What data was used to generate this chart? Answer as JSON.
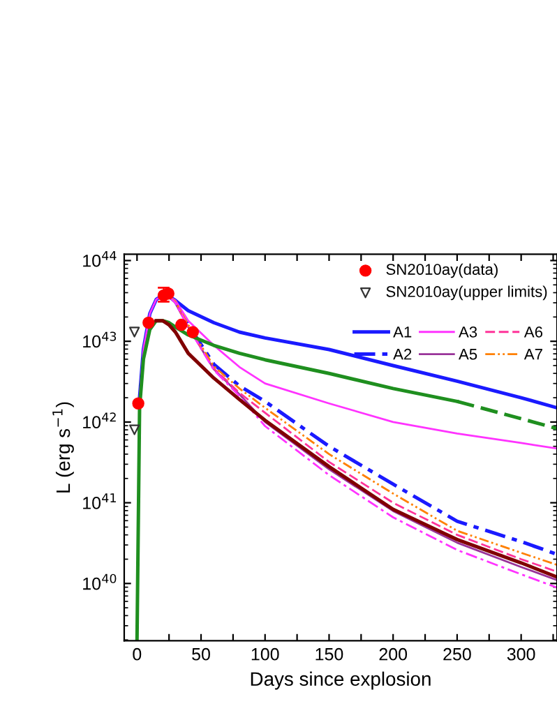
{
  "chart_data": {
    "type": "line",
    "xlabel": "Days since explosion",
    "ylabel": "L (erg s$^{−1}$)",
    "log": "y",
    "xlim": [
      -10,
      328
    ],
    "xticks": [
      0,
      {
        "value": 25,
        "label": null
      },
      50,
      {
        "value": 75,
        "label": null
      },
      100,
      {
        "value": 125,
        "label": null
      },
      150,
      {
        "value": 175,
        "label": null
      },
      200,
      {
        "value": 225,
        "label": null
      },
      250,
      {
        "value": 275,
        "label": null
      },
      300,
      {
        "value": 325,
        "label": null
      }
    ],
    "ylim": [
      1.95e+39,
      1.2e+44
    ],
    "yticks": [
      {
        "value": 1e+40,
        "label": "10$^{40}$"
      },
      {
        "value": 1e+41,
        "label": "10$^{41}$"
      },
      {
        "value": 1e+42,
        "label": "10$^{42}$"
      },
      {
        "value": 1e+43,
        "label": "10$^{43}$"
      },
      {
        "value": 1e+44,
        "label": "10$^{44}$"
      }
    ],
    "x": [
      2,
      5,
      10,
      15,
      20,
      25,
      30,
      40,
      60,
      80,
      100,
      150,
      200,
      250,
      300,
      328
    ],
    "legend": "top right",
    "grid": false,
    "series": [
      {
        "name": "SN2010ay(data)",
        "type": "scatter",
        "marker": "circle",
        "color": "#ff0000",
        "x": [
          1,
          9,
          20.8,
          24.5,
          34.6,
          43.6
        ],
        "values": [
          1.7e+42,
          1.7e+43,
          3.7e+43,
          3.9e+43,
          1.6e+43,
          1.3e+43
        ],
        "errors": [
          null,
          null,
          [
            3.1e+43,
            4.6e+43
          ],
          null,
          null,
          null
        ]
      },
      {
        "name": "SN2010ay(upper limits)",
        "type": "scatter",
        "marker": "triangle",
        "color": "#333333",
        "x": [
          -2,
          -2
        ],
        "values": [
          1.3e+43,
          8e+41
        ]
      },
      {
        "name": "A1",
        "color": "#1a1aff",
        "line_style": "solid",
        "values": [
          2e+42,
          8e+42,
          2.2e+43,
          3.3e+43,
          3.7e+43,
          3.6e+43,
          3.2e+43,
          2.4e+43,
          1.7e+43,
          1.3e+43,
          1.1e+43,
          7.9e+42,
          5e+42,
          3.2e+42,
          2e+42,
          1.5e+42
        ]
      },
      {
        "name": "A2",
        "color": "#1a1aff",
        "line_style": "dashdot",
        "values": [
          null,
          null,
          null,
          null,
          null,
          3.6e+43,
          3.1e+43,
          1.6e+43,
          5.2e+42,
          2.8e+42,
          1.8e+42,
          5e+41,
          1.7e+41,
          5.9e+40,
          3.3e+40,
          2.3e+40
        ]
      },
      {
        "name": "A3",
        "color": "#ff33ff",
        "line_style": "solid",
        "values": [
          2e+42,
          8e+42,
          2.2e+43,
          3.3e+43,
          3.7e+43,
          3.6e+43,
          3.2e+43,
          1.8e+43,
          8.9e+42,
          4.8e+42,
          3e+42,
          1.7e+42,
          1e+42,
          7.2e+41,
          5.5e+41,
          4.7e+41
        ]
      },
      {
        "name": "A5",
        "color": "#993399",
        "line_style": "solid",
        "values": [
          null,
          null,
          null,
          null,
          null,
          3.6e+43,
          3e+43,
          1.5e+43,
          4.5e+42,
          2.2e+42,
          1e+42,
          2.6e+41,
          7.9e+40,
          3.2e+40,
          1.6e+40,
          1.1e+40
        ]
      },
      {
        "name": "A6",
        "color": "#ff3399",
        "line_style": "dashed",
        "values": [
          null,
          null,
          null,
          null,
          null,
          3.6e+43,
          3e+43,
          1.5e+43,
          4.6e+42,
          2.3e+42,
          1.3e+42,
          3.2e+41,
          1e+41,
          4e+40,
          2e+40,
          1.4e+40
        ]
      },
      {
        "name": "A7",
        "color": "#ff8000",
        "line_style": "dashdotdot",
        "values": [
          null,
          null,
          null,
          null,
          null,
          3.6e+43,
          3.1e+43,
          1.6e+43,
          4.9e+42,
          2.6e+42,
          1.5e+42,
          4e+41,
          1.3e+41,
          4.5e+40,
          2.4e+40,
          1.7e+40
        ]
      },
      {
        "color": "#ff33ff",
        "line_style": "dashdot",
        "values": [
          null,
          null,
          null,
          null,
          null,
          3.6e+43,
          3e+43,
          1.5e+43,
          4.4e+42,
          2.1e+42,
          8.9e+41,
          2.2e+41,
          6.6e+40,
          2.6e+40,
          1.3e+40,
          8.9e+39
        ]
      },
      {
        "color": "#1f8f1f",
        "line_style": "solid",
        "x": [
          0,
          2,
          5,
          10,
          15,
          20,
          25,
          30,
          40,
          60,
          80,
          100,
          150,
          200,
          250
        ],
        "values": [
          2e+39,
          1.5e+42,
          6e+42,
          1.4e+43,
          1.8e+43,
          1.8e+43,
          1.7e+43,
          1.5e+43,
          1.2e+43,
          8.9e+42,
          7.1e+42,
          5.9e+42,
          4e+42,
          2.6e+42,
          1.8e+42
        ]
      },
      {
        "color": "#1f8f1f",
        "line_style": "dashed",
        "x": [
          250,
          300,
          328
        ],
        "values": [
          1.8e+42,
          1.1e+42,
          8.3e+41
        ]
      },
      {
        "color": "#800000",
        "line_style": "solid",
        "values": [
          null,
          null,
          null,
          1.8e+43,
          1.8e+43,
          1.6e+43,
          1.3e+43,
          7.1e+42,
          3.5e+42,
          1.9e+42,
          1.05e+42,
          2.8e+41,
          8.3e+40,
          3.5e+40,
          1.8e+40,
          1.2e+40
        ]
      }
    ]
  }
}
